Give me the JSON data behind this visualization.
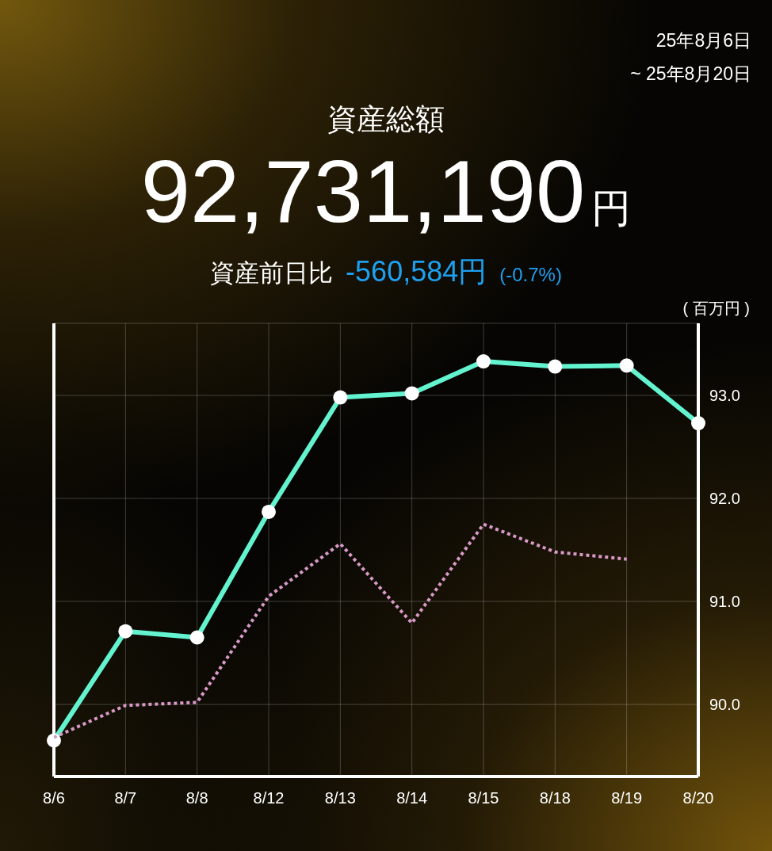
{
  "chart_data": {
    "type": "line",
    "title": "資産総額",
    "ylabel": "( 百万円 )",
    "annotations": [
      "25年8月6日",
      "~ 25年8月20日",
      "92,731,190",
      "円",
      "資産前日比",
      "-560,584円",
      "(-0.7%)"
    ],
    "categories": [
      "8/6",
      "8/7",
      "8/8",
      "8/12",
      "8/13",
      "8/14",
      "8/15",
      "8/18",
      "8/19",
      "8/20"
    ],
    "series": [
      {
        "color": "#63f3cf",
        "marker": "circle",
        "line_style": "solid",
        "values": [
          89.65,
          90.71,
          90.65,
          91.87,
          92.98,
          93.02,
          93.33,
          93.28,
          93.29,
          92.73
        ]
      },
      {
        "color": "#d99ac8",
        "marker": "none",
        "line_style": "dotted",
        "values": [
          89.68,
          89.99,
          90.02,
          91.05,
          91.56,
          90.79,
          91.75,
          91.48,
          91.41,
          null
        ]
      }
    ],
    "ylim": [
      89.3,
      93.7
    ],
    "yticks": [
      {
        "value": 90,
        "label": "90.0"
      },
      {
        "value": 91,
        "label": "91.0"
      },
      {
        "value": 92,
        "label": "92.0"
      },
      {
        "value": 93,
        "label": "93.0"
      }
    ],
    "grid": true
  }
}
